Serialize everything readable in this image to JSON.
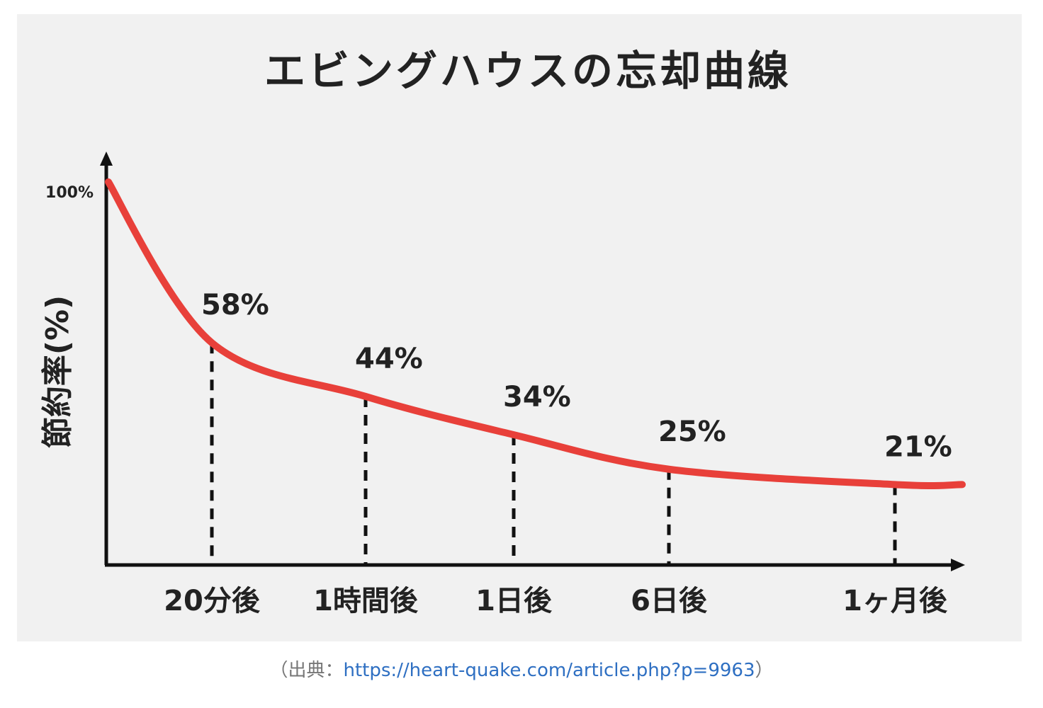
{
  "chart_data": {
    "type": "line",
    "title": "エビングハウスの忘却曲線",
    "ylabel": "節約率(%)",
    "y_top_label": "100%",
    "categories": [
      "20分後",
      "1時間後",
      "1日後",
      "6日後",
      "1ヶ月後"
    ],
    "values": [
      58,
      44,
      34,
      25,
      21
    ],
    "data_labels": [
      "58%",
      "44%",
      "34%",
      "25%",
      "21%"
    ],
    "start_value": 100,
    "ylim": [
      0,
      100
    ],
    "line_color": "#e8403a",
    "axis_color": "#111111",
    "grid": false,
    "legend": "none"
  },
  "source": {
    "prefix": "（出典：",
    "link": "https://heart-quake.com/article.php?p=9963",
    "suffix": "）"
  }
}
